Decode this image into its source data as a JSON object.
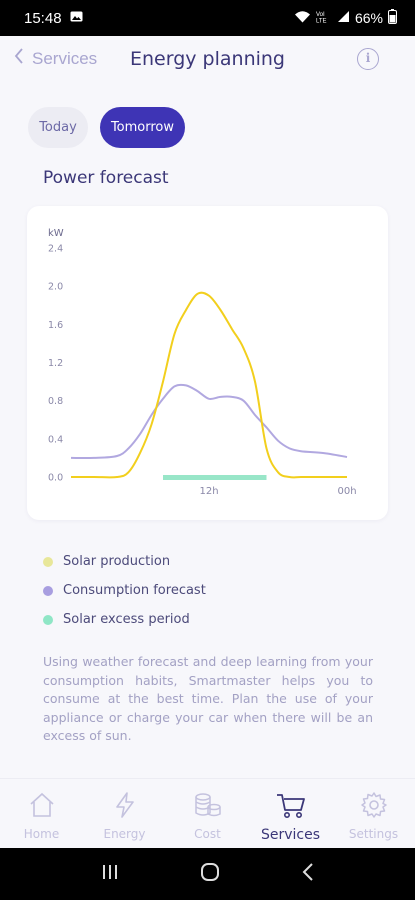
{
  "status_bar": {
    "time": "15:48",
    "battery": "66%",
    "icons": [
      "image-icon",
      "wifi-icon",
      "volte-icon",
      "signal-icon",
      "battery-icon"
    ]
  },
  "header": {
    "back_label": "Services",
    "title": "Energy planning",
    "info_icon": "info-icon"
  },
  "tabs": [
    {
      "label": "Today",
      "selected": false
    },
    {
      "label": "Tomorrow",
      "selected": true
    }
  ],
  "section_title": "Power forecast",
  "colors": {
    "accent": "#3e34b5",
    "solar": "#f2cf1d",
    "consumption": "#b1a8e0",
    "excess": "#98e6c8",
    "text": "#3b3778"
  },
  "chart_data": {
    "type": "line",
    "ylabel": "kW",
    "ylim": [
      0,
      2.4
    ],
    "yticks": [
      "2.4",
      "2.0",
      "1.6",
      "1.2",
      "0.8",
      "0.4",
      "0.0"
    ],
    "x_tick_labels": [
      "12h",
      "00h"
    ],
    "x_hours": [
      0,
      2,
      4,
      5,
      6,
      7,
      8,
      9,
      10,
      11,
      12,
      13,
      14,
      15,
      16,
      17,
      18,
      19,
      20,
      22,
      24
    ],
    "series": [
      {
        "name": "Solar production",
        "values": [
          0.0,
          0.0,
          0.0,
          0.05,
          0.25,
          0.55,
          1.0,
          1.5,
          1.75,
          1.92,
          1.9,
          1.75,
          1.55,
          1.35,
          1.0,
          0.3,
          0.05,
          0.0,
          0.0,
          0.0,
          0.0
        ]
      },
      {
        "name": "Consumption forecast",
        "values": [
          0.2,
          0.2,
          0.22,
          0.3,
          0.45,
          0.65,
          0.82,
          0.95,
          0.96,
          0.9,
          0.82,
          0.84,
          0.84,
          0.8,
          0.65,
          0.52,
          0.38,
          0.3,
          0.27,
          0.25,
          0.21
        ]
      }
    ],
    "excess_period": {
      "name": "Solar excess period",
      "start_hour": 8,
      "end_hour": 17
    }
  },
  "legend": [
    {
      "label": "Solar production",
      "color": "#e8e79a"
    },
    {
      "label": "Consumption forecast",
      "color": "#a89ee0"
    },
    {
      "label": "Solar excess period",
      "color": "#8fe6c6"
    }
  ],
  "description": "Using weather forecast and deep learning from your consumption habits, Smartmaster helps you to consume at the best time. Plan the use of your appliance or charge your car when there will be an excess of sun.",
  "bottom_nav": [
    {
      "label": "Home",
      "icon": "home-icon",
      "active": false
    },
    {
      "label": "Energy",
      "icon": "lightning-icon",
      "active": false
    },
    {
      "label": "Cost",
      "icon": "coins-icon",
      "active": false
    },
    {
      "label": "Services",
      "icon": "cart-icon",
      "active": true
    },
    {
      "label": "Settings",
      "icon": "gear-icon",
      "active": false
    }
  ]
}
